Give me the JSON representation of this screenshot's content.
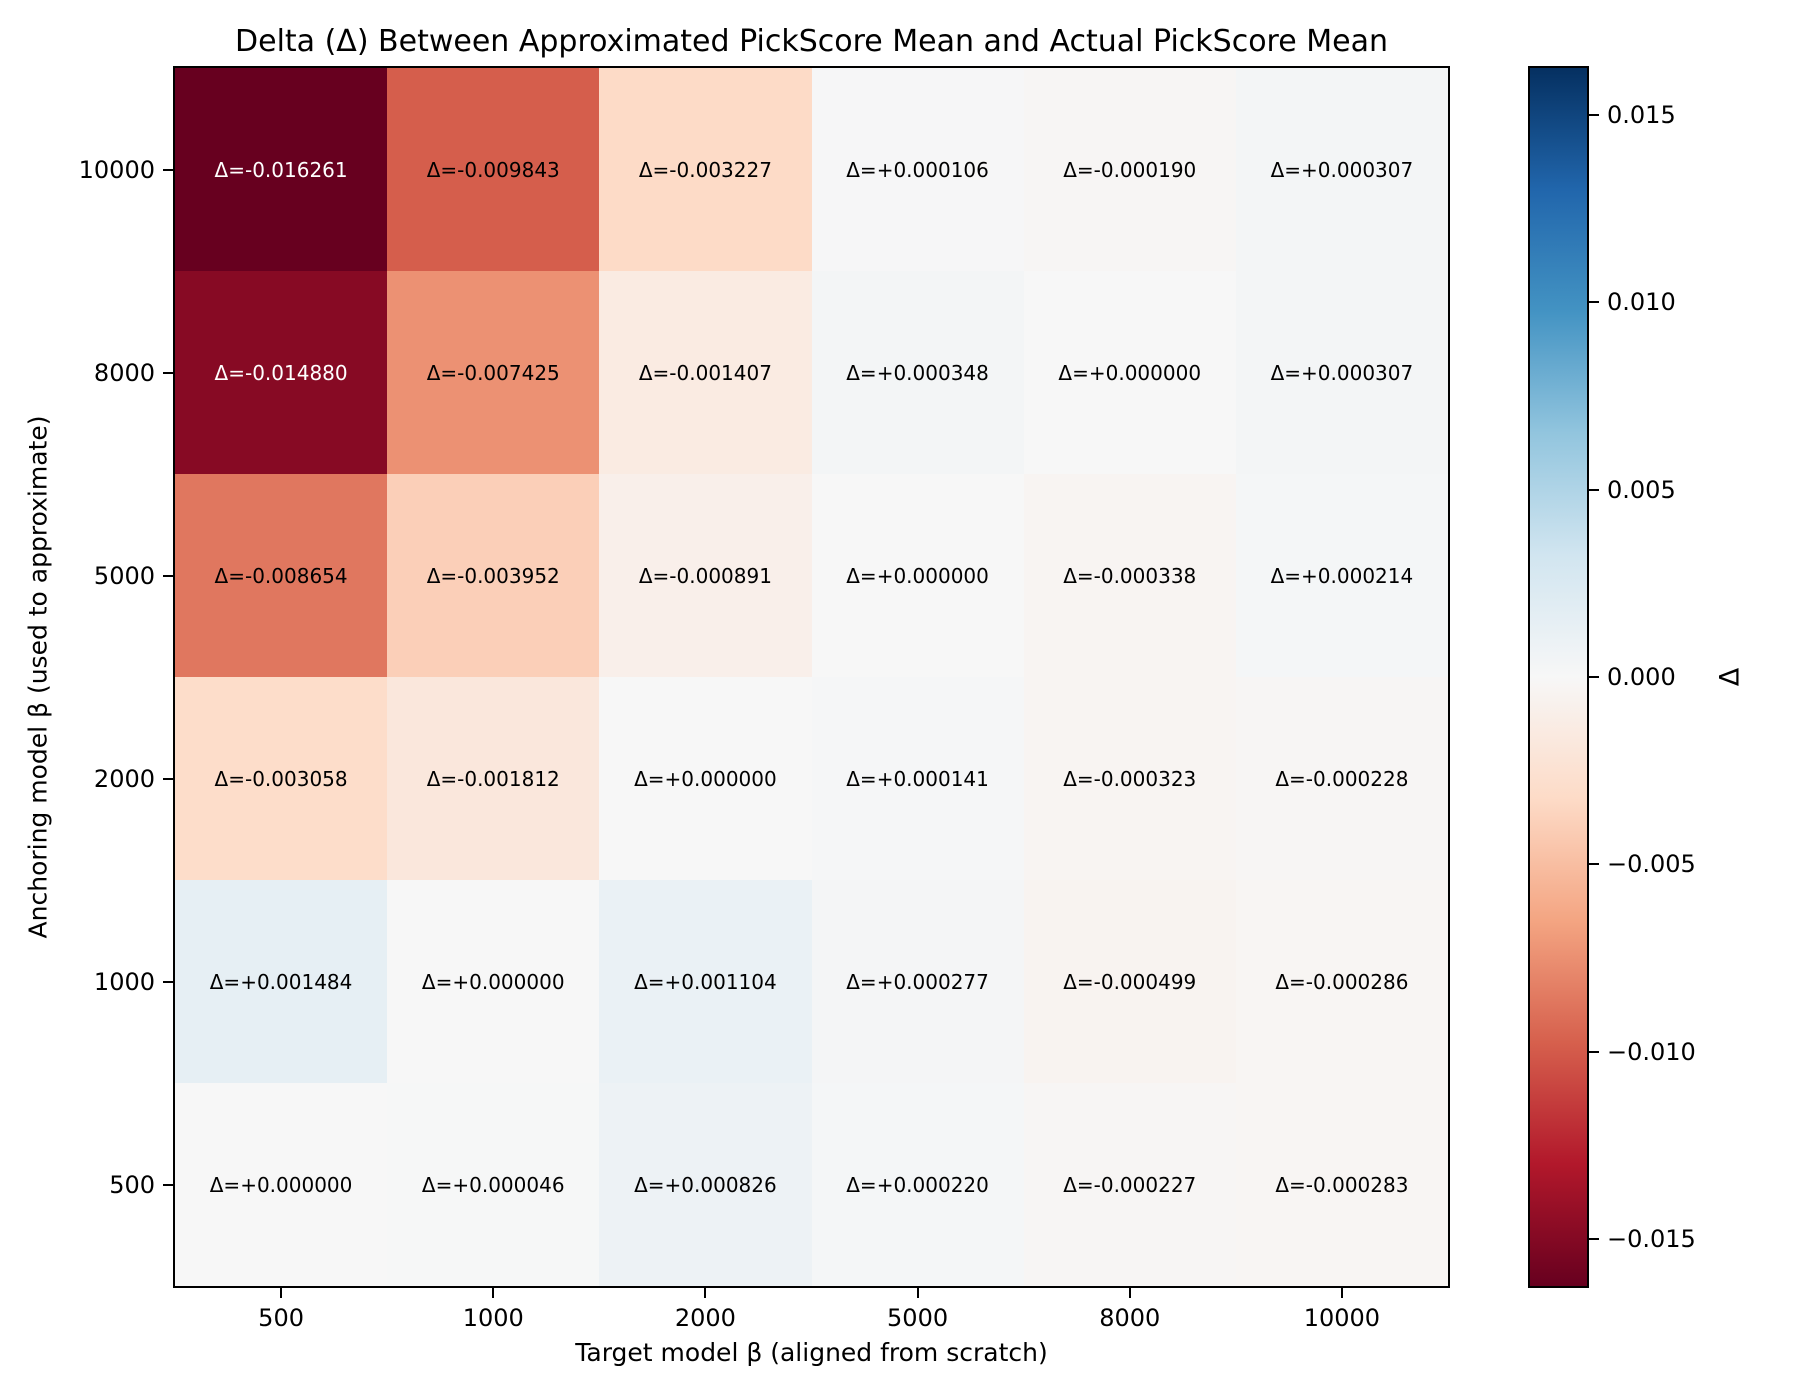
{
  "title": "Delta (Δ) Between Approximated PickScore Mean and Actual PickScore Mean",
  "chart_data": {
    "type": "heatmap",
    "title": "Delta (Δ) Between Approximated PickScore Mean and Actual PickScore Mean",
    "xlabel": "Target model β (aligned from scratch)",
    "ylabel": "Anchoring model β (used to approximate)",
    "x_categories": [
      "500",
      "1000",
      "2000",
      "5000",
      "8000",
      "10000"
    ],
    "y_categories": [
      "10000",
      "8000",
      "5000",
      "2000",
      "1000",
      "500"
    ],
    "values": [
      [
        -0.016261,
        -0.009843,
        -0.003227,
        0.000106,
        -0.00019,
        0.000307
      ],
      [
        -0.01488,
        -0.007425,
        -0.001407,
        0.000348,
        0.0,
        0.000307
      ],
      [
        -0.008654,
        -0.003952,
        -0.000891,
        0.0,
        -0.000338,
        0.000214
      ],
      [
        -0.003058,
        -0.001812,
        0.0,
        0.000141,
        -0.000323,
        -0.000228
      ],
      [
        0.001484,
        0.0,
        0.001104,
        0.000277,
        -0.000499,
        -0.000286
      ],
      [
        0.0,
        4.6e-05,
        0.000826,
        0.00022,
        -0.000227,
        -0.000283
      ]
    ],
    "annotation_prefix": "Δ=",
    "annotation_decimals": 6,
    "grid": false,
    "colorbar": {
      "label": "Δ",
      "position": "right",
      "vmin": -0.016261,
      "vmax": 0.016261,
      "tick_values": [
        0.015,
        0.01,
        0.005,
        0.0,
        -0.005,
        -0.01,
        -0.015
      ],
      "tick_labels": [
        "0.015",
        "0.010",
        "0.005",
        "0.000",
        "−0.005",
        "−0.010",
        "−0.015"
      ],
      "colormap": "RdBu",
      "stops": [
        "#67001f",
        "#b2182b",
        "#d6604d",
        "#f4a582",
        "#fddbc7",
        "#f7f7f7",
        "#d1e5f0",
        "#92c5de",
        "#4393c3",
        "#2166ac",
        "#053061"
      ]
    },
    "text_colors": {
      "light": "#ffffff",
      "dark": "#000000"
    }
  }
}
